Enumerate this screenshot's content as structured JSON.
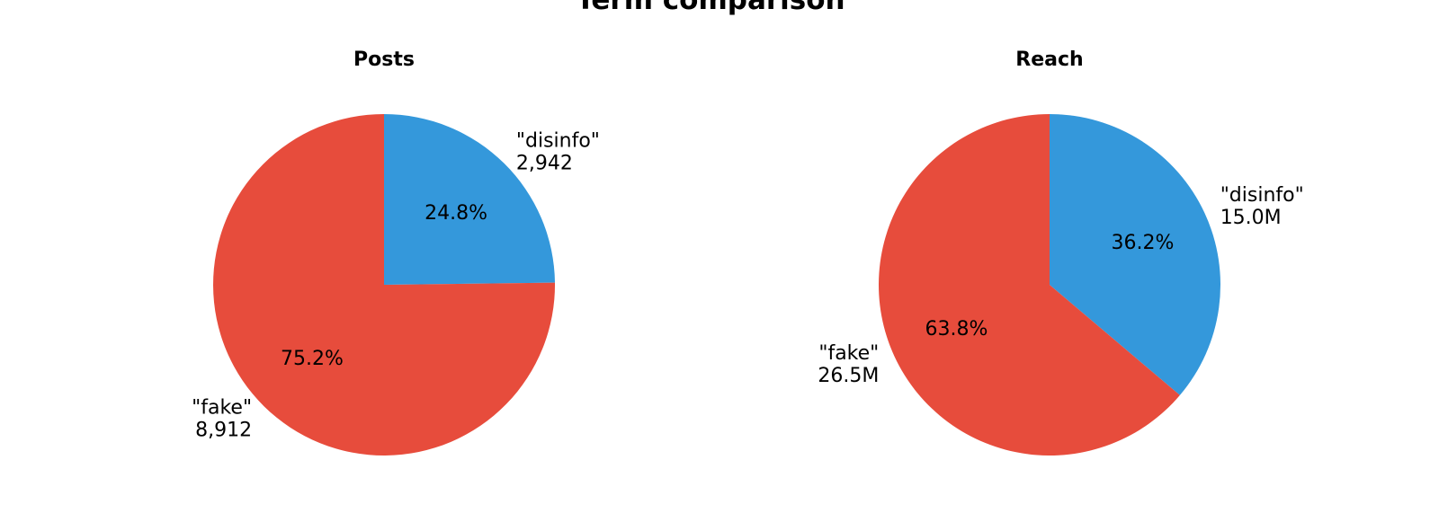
{
  "figure": {
    "title": "Term comparison",
    "background_color": "#ffffff",
    "text_color": "#000000"
  },
  "chart_data": [
    {
      "type": "pie",
      "title": "Posts",
      "start_angle_deg": 90,
      "direction": "clockwise",
      "legend": false,
      "labels_outside": true,
      "percents_inside": true,
      "slices": [
        {
          "label": "\"disinfo\"",
          "value": 2942,
          "value_label": "2,942",
          "pct": 24.8,
          "pct_label": "24.8%",
          "color": "#3498db"
        },
        {
          "label": "\"fake\"",
          "value": 8912,
          "value_label": "8,912",
          "pct": 75.2,
          "pct_label": "75.2%",
          "color": "#e74c3c"
        }
      ]
    },
    {
      "type": "pie",
      "title": "Reach",
      "start_angle_deg": 90,
      "direction": "clockwise",
      "legend": false,
      "labels_outside": true,
      "percents_inside": true,
      "slices": [
        {
          "label": "\"disinfo\"",
          "value": 15.0,
          "value_label": "15.0M",
          "pct": 36.2,
          "pct_label": "36.2%",
          "color": "#3498db"
        },
        {
          "label": "\"fake\"",
          "value": 26.5,
          "value_label": "26.5M",
          "pct": 63.8,
          "pct_label": "63.8%",
          "color": "#e74c3c"
        }
      ]
    }
  ]
}
